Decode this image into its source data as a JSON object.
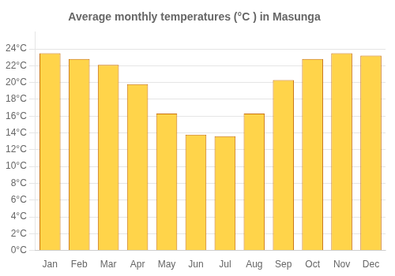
{
  "chart_data": {
    "type": "bar",
    "title": "Average monthly temperatures (°C ) in Masunga",
    "categories": [
      "Jan",
      "Feb",
      "Mar",
      "Apr",
      "May",
      "Jun",
      "Jul",
      "Aug",
      "Sep",
      "Oct",
      "Nov",
      "Dec"
    ],
    "values": [
      23.5,
      22.8,
      22.1,
      19.8,
      16.3,
      13.8,
      13.6,
      16.3,
      20.3,
      22.8,
      23.5,
      23.2
    ],
    "color": "#FFD44A",
    "ylim": [
      0,
      26
    ],
    "yticks": [
      {
        "value": 0,
        "label": "0°C"
      },
      {
        "value": 2,
        "label": "2°C"
      },
      {
        "value": 4,
        "label": "4°C"
      },
      {
        "value": 6,
        "label": "6°C"
      },
      {
        "value": 8,
        "label": "8°C"
      },
      {
        "value": 10,
        "label": "10°C"
      },
      {
        "value": 12,
        "label": "12°C"
      },
      {
        "value": 14,
        "label": "14°C"
      },
      {
        "value": 16,
        "label": "16°C"
      },
      {
        "value": 18,
        "label": "18°C"
      },
      {
        "value": 20,
        "label": "20°C"
      },
      {
        "value": 22,
        "label": "22°C"
      },
      {
        "value": 24,
        "label": "24°C"
      }
    ],
    "grid": true
  }
}
